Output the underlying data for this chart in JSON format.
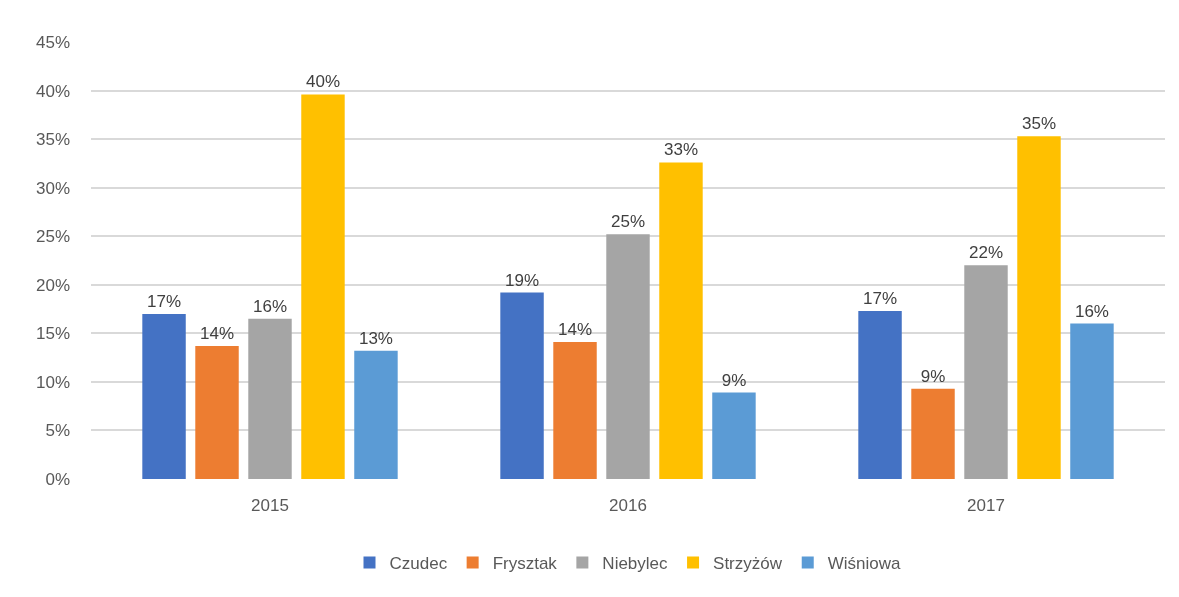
{
  "chart_data": {
    "type": "bar",
    "categories": [
      "2015",
      "2016",
      "2017"
    ],
    "series": [
      {
        "name": "Czudec",
        "color": "#4472c4",
        "values": [
          17.0,
          19.2,
          17.3
        ],
        "value_labels": [
          "17%",
          "19%",
          "17%"
        ]
      },
      {
        "name": "Frysztak",
        "color": "#ed7d31",
        "values": [
          13.7,
          14.1,
          9.3
        ],
        "value_labels": [
          "14%",
          "14%",
          "9%"
        ]
      },
      {
        "name": "Niebylec",
        "color": "#a5a5a5",
        "values": [
          16.5,
          25.2,
          22.0
        ],
        "value_labels": [
          "16%",
          "25%",
          "22%"
        ]
      },
      {
        "name": "Strzyżów",
        "color": "#ffc000",
        "values": [
          39.6,
          32.6,
          35.3
        ],
        "value_labels": [
          "40%",
          "33%",
          "35%"
        ]
      },
      {
        "name": "Wiśniowa",
        "color": "#5b9bd5",
        "values": [
          13.2,
          8.9,
          16.0
        ],
        "value_labels": [
          "13%",
          "9%",
          "16%"
        ]
      }
    ],
    "ylim": [
      0,
      45
    ],
    "yticks": [
      {
        "value": 0,
        "label": "0%"
      },
      {
        "value": 5,
        "label": "5%"
      },
      {
        "value": 10,
        "label": "10%"
      },
      {
        "value": 15,
        "label": "15%"
      },
      {
        "value": 20,
        "label": "20%"
      },
      {
        "value": 25,
        "label": "25%"
      },
      {
        "value": 30,
        "label": "30%"
      },
      {
        "value": 35,
        "label": "35%"
      },
      {
        "value": 40,
        "label": "40%"
      },
      {
        "value": 45,
        "label": "45%"
      }
    ],
    "grid": "y",
    "legend": "bottom"
  }
}
